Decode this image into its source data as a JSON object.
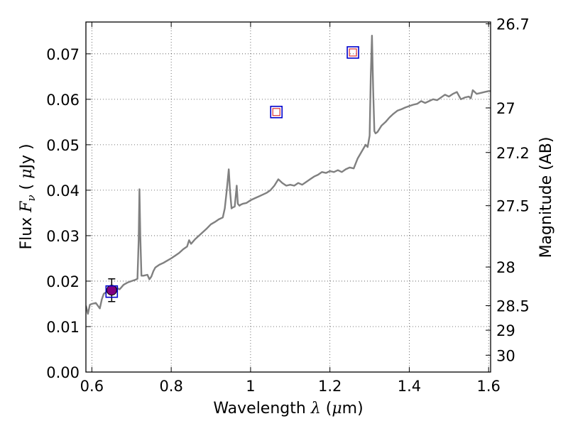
{
  "chart_data": {
    "type": "line",
    "xlabel": "Wavelength  λ (μm)",
    "ylabel": "Flux  Fν  ( μJy )",
    "y2label": "Magnitude (AB)",
    "xlim": [
      0.585,
      1.605
    ],
    "ylim": [
      0.0,
      0.077
    ],
    "grid": true,
    "x_ticks": [
      0.6,
      0.8,
      1.0,
      1.2,
      1.4,
      1.6
    ],
    "x_tick_labels": [
      "0.6",
      "0.8",
      "1",
      "1.2",
      "1.4",
      "1.6"
    ],
    "y_ticks": [
      0.0,
      0.01,
      0.02,
      0.03,
      0.04,
      0.05,
      0.06,
      0.07
    ],
    "y_tick_labels": [
      "0.00",
      "0.01",
      "0.02",
      "0.03",
      "0.04",
      "0.05",
      "0.06",
      "0.07"
    ],
    "y2_ticks": [
      {
        "label": "26.7",
        "flux": 0.0766
      },
      {
        "label": "27",
        "flux": 0.0581
      },
      {
        "label": "27.2",
        "flux": 0.0483
      },
      {
        "label": "27.5",
        "flux": 0.0366
      },
      {
        "label": "28",
        "flux": 0.0231
      },
      {
        "label": "28.5",
        "flux": 0.0146
      },
      {
        "label": "29",
        "flux": 0.0092
      },
      {
        "label": "30",
        "flux": 0.0037
      }
    ],
    "series": [
      {
        "type": "line",
        "color": "#808080",
        "x": [
          0.585,
          0.59,
          0.595,
          0.6,
          0.61,
          0.62,
          0.625,
          0.63,
          0.64,
          0.65,
          0.66,
          0.67,
          0.68,
          0.69,
          0.7,
          0.71,
          0.715,
          0.718,
          0.72,
          0.722,
          0.725,
          0.73,
          0.74,
          0.745,
          0.75,
          0.755,
          0.76,
          0.77,
          0.78,
          0.79,
          0.8,
          0.81,
          0.82,
          0.83,
          0.84,
          0.845,
          0.85,
          0.86,
          0.87,
          0.88,
          0.89,
          0.9,
          0.91,
          0.92,
          0.93,
          0.935,
          0.94,
          0.945,
          0.948,
          0.952,
          0.955,
          0.96,
          0.965,
          0.968,
          0.972,
          0.975,
          0.98,
          0.99,
          1.0,
          1.01,
          1.02,
          1.03,
          1.04,
          1.05,
          1.06,
          1.07,
          1.08,
          1.09,
          1.1,
          1.11,
          1.12,
          1.13,
          1.14,
          1.15,
          1.16,
          1.17,
          1.18,
          1.19,
          1.2,
          1.21,
          1.22,
          1.23,
          1.24,
          1.25,
          1.26,
          1.27,
          1.28,
          1.29,
          1.295,
          1.3,
          1.303,
          1.306,
          1.309,
          1.312,
          1.315,
          1.32,
          1.33,
          1.34,
          1.35,
          1.36,
          1.37,
          1.38,
          1.39,
          1.4,
          1.41,
          1.42,
          1.43,
          1.44,
          1.45,
          1.46,
          1.47,
          1.48,
          1.49,
          1.5,
          1.51,
          1.52,
          1.53,
          1.54,
          1.55,
          1.555,
          1.56,
          1.57,
          1.58,
          1.59,
          1.6,
          1.605
        ],
        "y": [
          0.0146,
          0.0128,
          0.0148,
          0.015,
          0.0152,
          0.014,
          0.016,
          0.0172,
          0.0178,
          0.018,
          0.0186,
          0.0182,
          0.0192,
          0.0197,
          0.02,
          0.0203,
          0.0205,
          0.029,
          0.0402,
          0.03,
          0.0212,
          0.0212,
          0.0214,
          0.0204,
          0.021,
          0.0222,
          0.023,
          0.0236,
          0.024,
          0.0245,
          0.025,
          0.0256,
          0.0262,
          0.027,
          0.0276,
          0.029,
          0.0282,
          0.0292,
          0.03,
          0.0308,
          0.0316,
          0.0325,
          0.033,
          0.0336,
          0.034,
          0.036,
          0.04,
          0.0446,
          0.04,
          0.036,
          0.0362,
          0.0364,
          0.041,
          0.037,
          0.0366,
          0.0368,
          0.037,
          0.0372,
          0.0378,
          0.0382,
          0.0386,
          0.039,
          0.0394,
          0.04,
          0.041,
          0.0424,
          0.0416,
          0.041,
          0.0412,
          0.041,
          0.0416,
          0.0412,
          0.0418,
          0.0424,
          0.043,
          0.0434,
          0.044,
          0.0438,
          0.0442,
          0.044,
          0.0444,
          0.044,
          0.0446,
          0.045,
          0.0448,
          0.047,
          0.0485,
          0.05,
          0.0495,
          0.052,
          0.065,
          0.074,
          0.062,
          0.053,
          0.0525,
          0.0528,
          0.0542,
          0.055,
          0.056,
          0.0568,
          0.0575,
          0.0578,
          0.0582,
          0.0585,
          0.0588,
          0.059,
          0.0596,
          0.0592,
          0.0596,
          0.06,
          0.0598,
          0.0604,
          0.061,
          0.0606,
          0.0612,
          0.0616,
          0.06,
          0.0604,
          0.0606,
          0.0602,
          0.062,
          0.0612,
          0.0614,
          0.0616,
          0.0618,
          0.0618
        ]
      },
      {
        "type": "scatter",
        "marker": "square",
        "edge_color": "#0000cc",
        "x": [
          0.65,
          1.065,
          1.258
        ],
        "y": [
          0.0177,
          0.0572,
          0.0703
        ]
      },
      {
        "type": "scatter",
        "marker": "small-square",
        "edge_color": "#dd3333",
        "x": [
          1.065,
          1.258
        ],
        "y": [
          0.0572,
          0.0703
        ]
      },
      {
        "type": "errorbar",
        "marker": "circle",
        "color": "#800080",
        "x": [
          0.65
        ],
        "y": [
          0.018
        ],
        "yerr": [
          0.0025
        ]
      }
    ]
  }
}
